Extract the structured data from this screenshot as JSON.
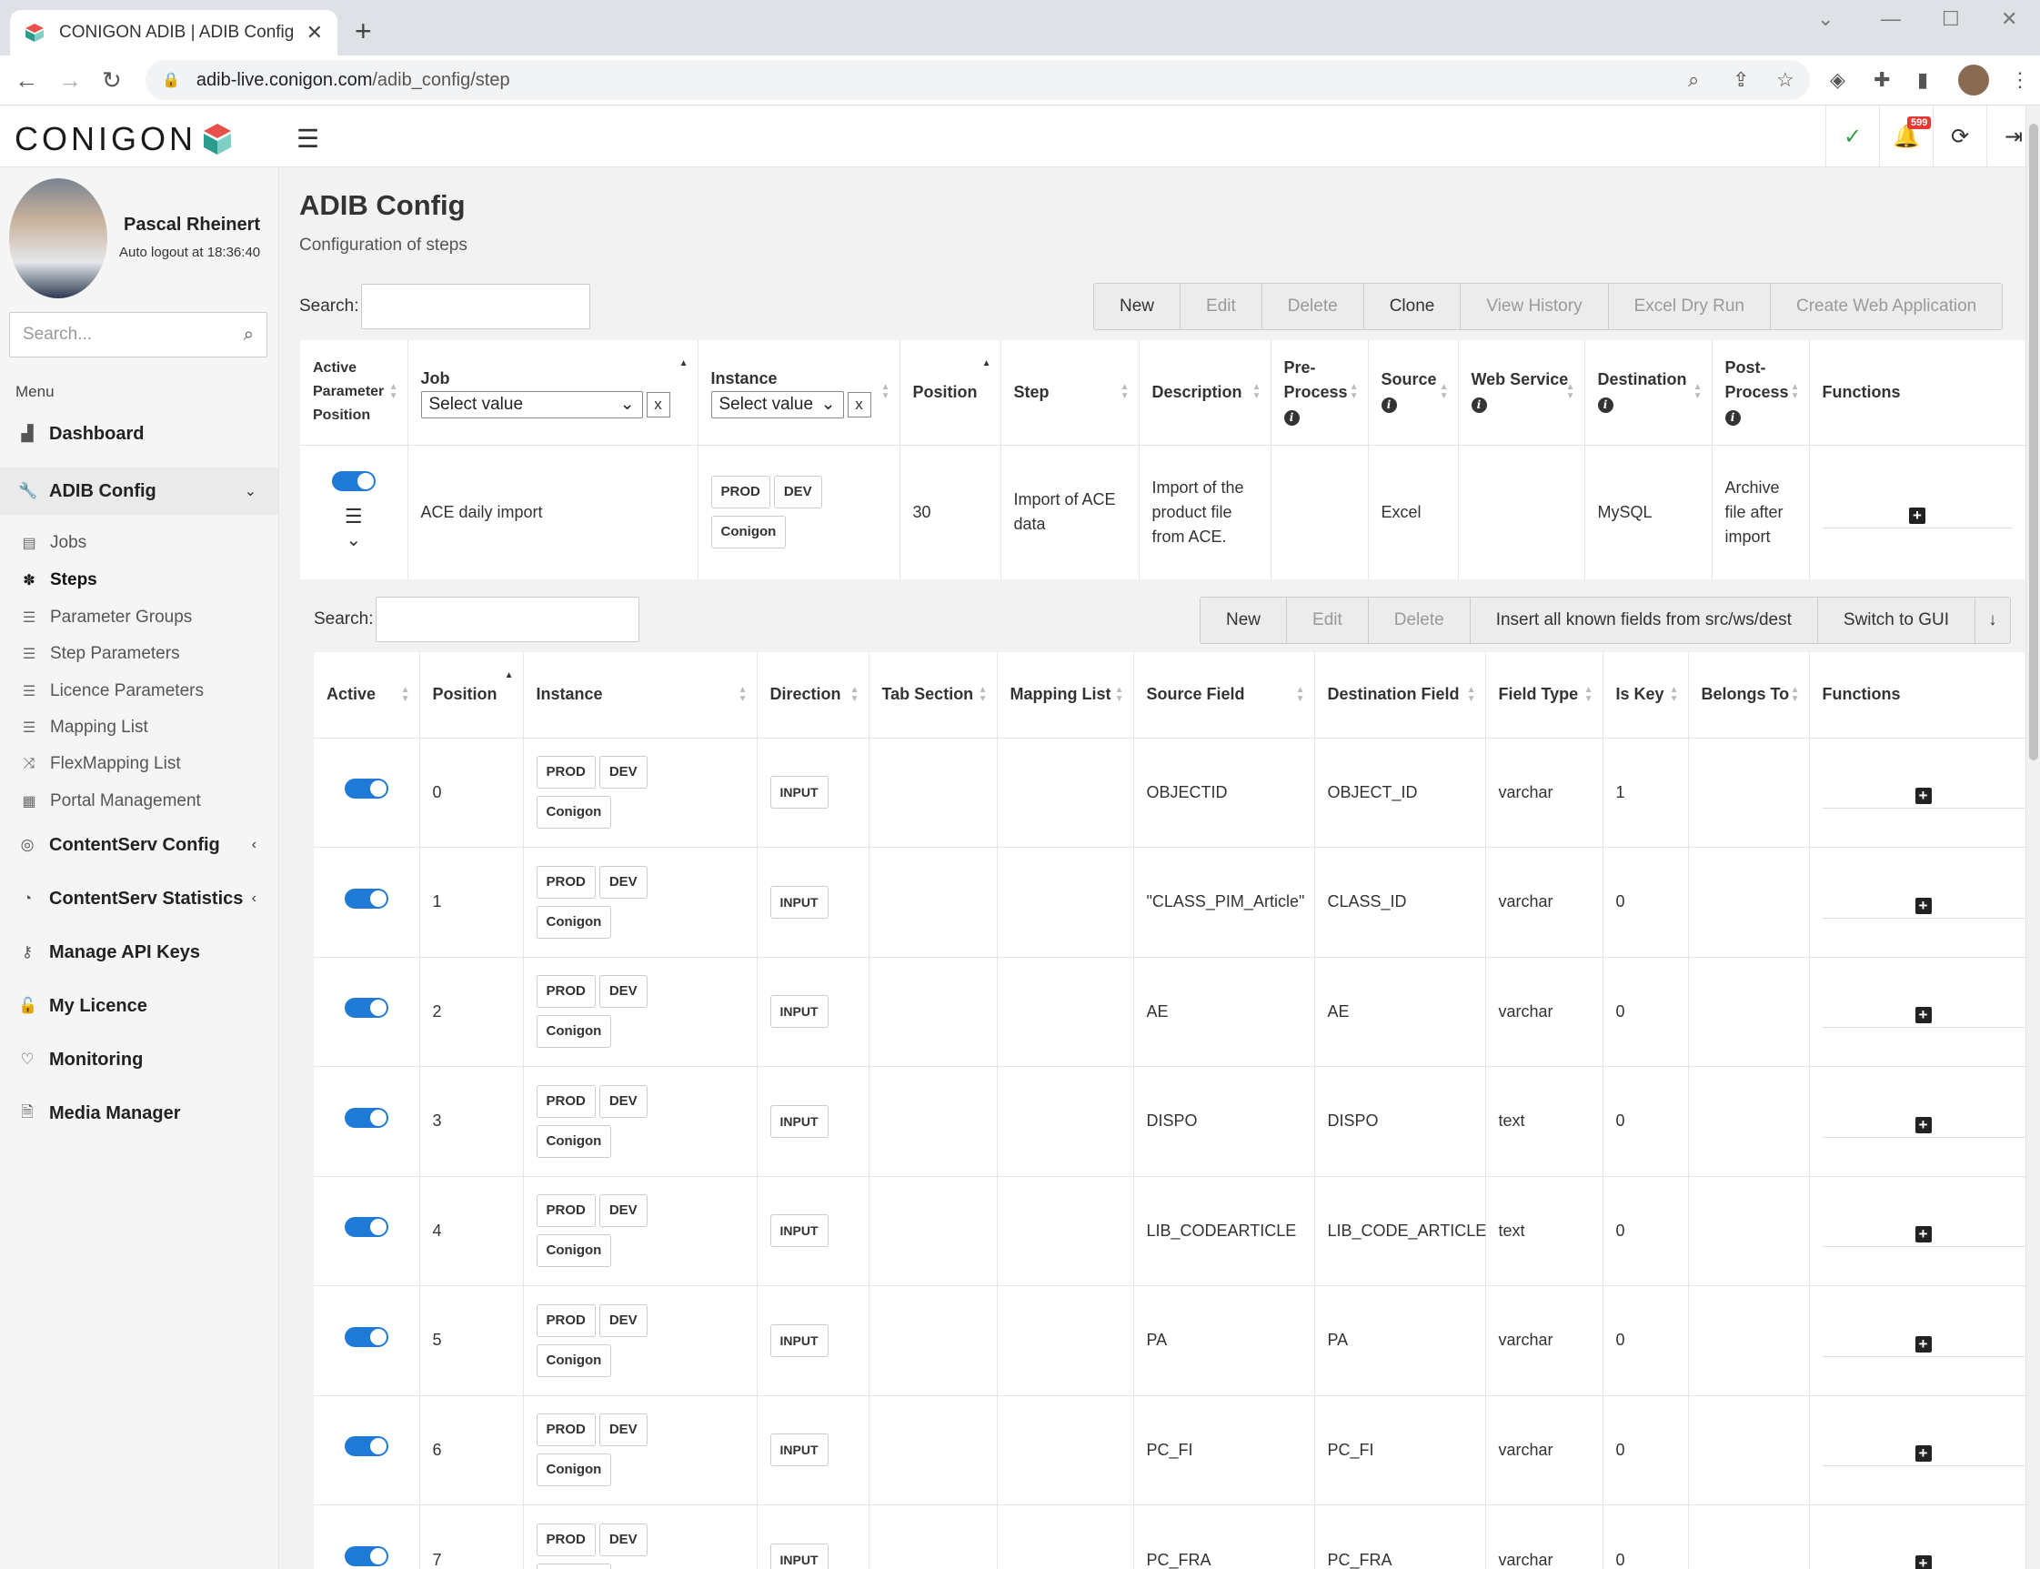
{
  "browser": {
    "tab_title": "CONIGON ADIB | ADIB Config",
    "url_host": "adib-live.conigon.com",
    "url_path": "/adib_config/step"
  },
  "header": {
    "logo_text": "CONIGON",
    "notification_count": "599"
  },
  "sidebar": {
    "user_name": "Pascal Rheinert",
    "auto_logout": "Auto logout at 18:36:40",
    "search_placeholder": "Search...",
    "menu_label": "Menu",
    "items": [
      {
        "label": "Dashboard",
        "icon": "chart-icon"
      },
      {
        "label": "ADIB Config",
        "icon": "wrench-icon"
      },
      {
        "label": "ContentServ Config",
        "icon": "target-icon"
      },
      {
        "label": "ContentServ Statistics",
        "icon": "pie-icon"
      },
      {
        "label": "Manage API Keys",
        "icon": "key-icon"
      },
      {
        "label": "My Licence",
        "icon": "lock-icon"
      },
      {
        "label": "Monitoring",
        "icon": "heartbeat-icon"
      },
      {
        "label": "Media Manager",
        "icon": "file-icon"
      }
    ],
    "sub_items": [
      {
        "label": "Jobs"
      },
      {
        "label": "Steps"
      },
      {
        "label": "Parameter Groups"
      },
      {
        "label": "Step Parameters"
      },
      {
        "label": "Licence Parameters"
      },
      {
        "label": "Mapping List"
      },
      {
        "label": "FlexMapping List"
      },
      {
        "label": "Portal Management"
      }
    ]
  },
  "main": {
    "title": "ADIB Config",
    "subtitle": "Configuration of steps",
    "search_label": "Search:",
    "buttons": [
      "New",
      "Edit",
      "Delete",
      "Clone",
      "View History",
      "Excel Dry Run",
      "Create Web Application"
    ],
    "steps_table": {
      "headers": {
        "active": "Active Parameter Position",
        "job": "Job",
        "instance": "Instance",
        "position": "Position",
        "step": "Step",
        "description": "Description",
        "pre_process": "Pre-Process",
        "source": "Source",
        "web_service": "Web Service",
        "destination": "Destination",
        "post_process": "Post-Process",
        "functions": "Functions"
      },
      "select_placeholder": "Select value",
      "clear_label": "x",
      "row": {
        "job": "ACE daily import",
        "instances": [
          "PROD",
          "DEV",
          "Conigon"
        ],
        "position": "30",
        "step": "Import of ACE data",
        "description": "Import of the product file from ACE.",
        "pre_process": "",
        "source": "Excel",
        "web_service": "",
        "destination": "MySQL",
        "post_process": "Archive file after import"
      }
    },
    "sub_search_label": "Search:",
    "sub_buttons": [
      "New",
      "Edit",
      "Delete",
      "Insert all known fields from src/ws/dest",
      "Switch to GUI",
      "↓"
    ],
    "fields_table": {
      "headers": {
        "active": "Active",
        "position": "Position",
        "instance": "Instance",
        "direction": "Direction",
        "tab_section": "Tab Section",
        "mapping_list": "Mapping List",
        "source_field": "Source Field",
        "destination_field": "Destination Field",
        "field_type": "Field Type",
        "is_key": "Is Key",
        "belongs_to": "Belongs To",
        "functions": "Functions"
      },
      "direction_label": "INPUT",
      "rows": [
        {
          "position": "0",
          "source": "OBJECTID",
          "dest": "OBJECT_ID",
          "type": "varchar",
          "is_key": "1"
        },
        {
          "position": "1",
          "source": "\"CLASS_PIM_Article\"",
          "dest": "CLASS_ID",
          "type": "varchar",
          "is_key": "0"
        },
        {
          "position": "2",
          "source": "AE",
          "dest": "AE",
          "type": "varchar",
          "is_key": "0"
        },
        {
          "position": "3",
          "source": "DISPO",
          "dest": "DISPO",
          "type": "text",
          "is_key": "0"
        },
        {
          "position": "4",
          "source": "LIB_CODEARTICLE",
          "dest": "LIB_CODE_ARTICLE",
          "type": "text",
          "is_key": "0"
        },
        {
          "position": "5",
          "source": "PA",
          "dest": "PA",
          "type": "varchar",
          "is_key": "0"
        },
        {
          "position": "6",
          "source": "PC_FI",
          "dest": "PC_FI",
          "type": "varchar",
          "is_key": "0"
        },
        {
          "position": "7",
          "source": "PC_FRA",
          "dest": "PC_FRA",
          "type": "varchar",
          "is_key": "0"
        }
      ]
    }
  },
  "colors": {
    "toggle_on": "#1e7ad6",
    "badge": "#e53935",
    "logo_red": "#e8504a",
    "logo_teal": "#2a9d8f"
  }
}
